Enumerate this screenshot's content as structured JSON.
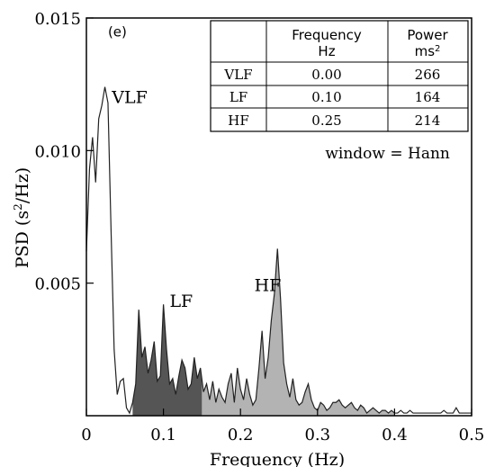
{
  "chart_data": {
    "type": "area",
    "panel_label": "(e)",
    "xlabel": "Frequency (Hz)",
    "ylabel_main": "PSD (s",
    "ylabel_sup": "2",
    "ylabel_tail": "/Hz)",
    "xlim": [
      0,
      0.5
    ],
    "ylim": [
      0,
      0.015
    ],
    "x_ticks": [
      0,
      0.1,
      0.2,
      0.3,
      0.4,
      0.5
    ],
    "x_tick_labels": [
      "0",
      "0.1",
      "0.2",
      "0.3",
      "0.4",
      "0.5"
    ],
    "y_ticks": [
      0.005,
      0.01,
      0.015
    ],
    "y_tick_labels": [
      "0.005",
      "0.010",
      "0.015"
    ],
    "grid": false,
    "annotations": [
      {
        "text": "VLF",
        "x": 0.033,
        "y": 0.0118
      },
      {
        "text": "LF",
        "x": 0.108,
        "y": 0.0041
      },
      {
        "text": "HF",
        "x": 0.218,
        "y": 0.0047
      },
      {
        "text": "window = Hann",
        "x": 0.31,
        "y": 0.0097
      }
    ],
    "bands": [
      {
        "name": "VLF",
        "from": 0.0,
        "to": 0.04,
        "color": "#ffffff"
      },
      {
        "name": "LF",
        "from": 0.06,
        "to": 0.15,
        "color": "#555555"
      },
      {
        "name": "HF",
        "from": 0.15,
        "to": 0.4,
        "color": "#b3b3b3"
      }
    ],
    "psd": {
      "x": [
        0,
        0.004,
        0.008,
        0.012,
        0.016,
        0.02,
        0.024,
        0.028,
        0.032,
        0.036,
        0.04,
        0.044,
        0.048,
        0.052,
        0.056,
        0.06,
        0.064,
        0.068,
        0.072,
        0.076,
        0.08,
        0.084,
        0.088,
        0.092,
        0.096,
        0.1,
        0.104,
        0.108,
        0.112,
        0.116,
        0.12,
        0.124,
        0.128,
        0.132,
        0.136,
        0.14,
        0.144,
        0.148,
        0.152,
        0.156,
        0.16,
        0.164,
        0.168,
        0.172,
        0.176,
        0.18,
        0.184,
        0.188,
        0.192,
        0.196,
        0.2,
        0.204,
        0.208,
        0.212,
        0.216,
        0.22,
        0.224,
        0.228,
        0.232,
        0.236,
        0.24,
        0.244,
        0.248,
        0.252,
        0.256,
        0.26,
        0.264,
        0.268,
        0.272,
        0.276,
        0.28,
        0.284,
        0.288,
        0.292,
        0.296,
        0.3,
        0.304,
        0.308,
        0.312,
        0.316,
        0.32,
        0.324,
        0.328,
        0.332,
        0.336,
        0.34,
        0.344,
        0.348,
        0.352,
        0.356,
        0.36,
        0.364,
        0.368,
        0.372,
        0.376,
        0.38,
        0.384,
        0.388,
        0.392,
        0.396,
        0.4,
        0.404,
        0.408,
        0.412,
        0.416,
        0.42,
        0.424,
        0.428,
        0.432,
        0.436,
        0.44,
        0.444,
        0.448,
        0.452,
        0.456,
        0.46,
        0.464,
        0.468,
        0.472,
        0.476,
        0.48,
        0.484,
        0.488,
        0.492,
        0.496,
        0.5
      ],
      "y": [
        0.0062,
        0.0093,
        0.0105,
        0.0088,
        0.0112,
        0.0117,
        0.0124,
        0.0118,
        0.007,
        0.0025,
        0.0008,
        0.0013,
        0.0014,
        0.0003,
        0.0001,
        0.0005,
        0.0012,
        0.004,
        0.0022,
        0.0026,
        0.0016,
        0.0021,
        0.0028,
        0.0013,
        0.0015,
        0.0042,
        0.0025,
        0.0012,
        0.0014,
        0.0008,
        0.0015,
        0.0021,
        0.0018,
        0.001,
        0.0012,
        0.0022,
        0.0014,
        0.0018,
        0.0009,
        0.0012,
        0.0006,
        0.0013,
        0.0005,
        0.001,
        0.0007,
        0.0005,
        0.0012,
        0.0016,
        0.0005,
        0.0018,
        0.001,
        0.0006,
        0.0014,
        0.0008,
        0.0004,
        0.0006,
        0.0018,
        0.0032,
        0.0014,
        0.0022,
        0.0036,
        0.0046,
        0.0063,
        0.0044,
        0.002,
        0.0012,
        0.0007,
        0.0014,
        0.0006,
        0.0004,
        0.0005,
        0.0009,
        0.0012,
        0.0006,
        0.0003,
        0.0002,
        0.0005,
        0.0004,
        0.0002,
        0.0003,
        0.0005,
        0.0005,
        0.0006,
        0.0004,
        0.0003,
        0.0004,
        0.0005,
        0.0003,
        0.0002,
        0.0004,
        0.0003,
        0.0001,
        0.0002,
        0.0003,
        0.0002,
        0.0001,
        0.0002,
        0.0002,
        0.0001,
        0.0002,
        0.0001,
        0.0001,
        0.0002,
        0.0001,
        0.0001,
        0.0002,
        0.0001,
        0.0001,
        0.0001,
        0.0001,
        0.0001,
        0.0001,
        0.0001,
        0.0001,
        0.0001,
        0.0001,
        0.0002,
        0.0001,
        0.0001,
        0.0001,
        0.0003,
        0.0001,
        0.0001,
        0.0001,
        0.0001,
        0.0001
      ]
    },
    "table": {
      "headers": [
        {
          "line1": "",
          "line2": ""
        },
        {
          "line1": "Frequency",
          "line2": "Hz"
        },
        {
          "line1": "Power",
          "line2": "ms",
          "sup": "2"
        }
      ],
      "rows": [
        {
          "band": "VLF",
          "frequency": "0.00",
          "power": "266"
        },
        {
          "band": "LF",
          "frequency": "0.10",
          "power": "164"
        },
        {
          "band": "HF",
          "frequency": "0.25",
          "power": "214"
        }
      ]
    }
  }
}
